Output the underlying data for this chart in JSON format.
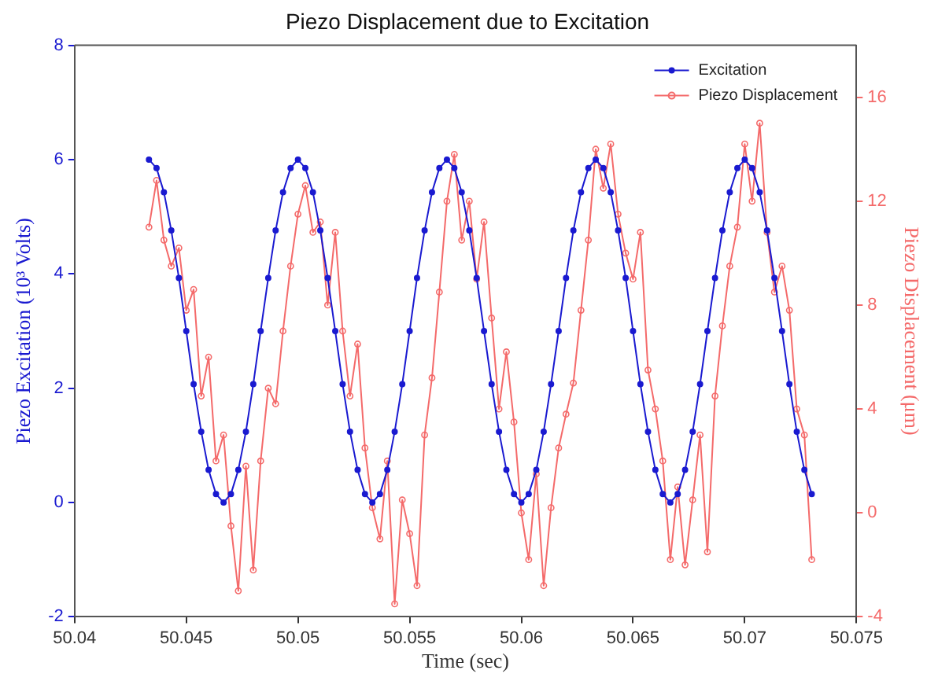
{
  "chart_data": {
    "type": "line",
    "title": "Piezo Displacement due to Excitation",
    "xlabel": "Time (sec)",
    "ylabel": "Piezo Excitation (10³ Volts)",
    "y2label": "Piezo Displacement (μm)",
    "xlim": [
      50.04,
      50.075
    ],
    "xticks": [
      50.04,
      50.045,
      50.05,
      50.055,
      50.06,
      50.065,
      50.07,
      50.075
    ],
    "ylim": [
      -2,
      8
    ],
    "yticks": [
      -2,
      0,
      2,
      4,
      6,
      8
    ],
    "y2lim": [
      -4,
      18
    ],
    "y2ticks": [
      -4,
      0,
      4,
      8,
      12,
      16
    ],
    "grid": false,
    "legend": "top right",
    "marker": "circle",
    "line_style": "solid",
    "x": [
      50.04333,
      50.04367,
      50.044,
      50.04433,
      50.04467,
      50.045,
      50.04533,
      50.04567,
      50.046,
      50.04633,
      50.04667,
      50.047,
      50.04733,
      50.04767,
      50.048,
      50.04833,
      50.04867,
      50.049,
      50.04933,
      50.04967,
      50.05,
      50.05033,
      50.05067,
      50.051,
      50.05133,
      50.05167,
      50.052,
      50.05233,
      50.05267,
      50.053,
      50.05333,
      50.05367,
      50.054,
      50.05433,
      50.05467,
      50.055,
      50.05533,
      50.05567,
      50.056,
      50.05633,
      50.05667,
      50.057,
      50.05733,
      50.05767,
      50.058,
      50.05833,
      50.05867,
      50.059,
      50.05933,
      50.05967,
      50.06,
      50.06033,
      50.06067,
      50.061,
      50.06133,
      50.06167,
      50.062,
      50.06233,
      50.06267,
      50.063,
      50.06333,
      50.06367,
      50.064,
      50.06433,
      50.06467,
      50.065,
      50.06533,
      50.06567,
      50.066,
      50.06633,
      50.06667,
      50.067,
      50.06733,
      50.06767,
      50.068,
      50.06833,
      50.06867,
      50.069,
      50.06933,
      50.06967,
      50.07,
      50.07033,
      50.07067,
      50.071,
      50.07133,
      50.07167,
      50.072,
      50.07233,
      50.07267,
      50.073
    ],
    "series": [
      {
        "name": "Excitation",
        "color": "#1a1ad0",
        "values": [
          6,
          5.85,
          5.43,
          4.76,
          3.93,
          3,
          2.07,
          1.24,
          0.57,
          0.15,
          0,
          0.15,
          0.57,
          1.24,
          2.07,
          3,
          3.93,
          4.76,
          5.43,
          5.85,
          6,
          5.85,
          5.43,
          4.76,
          3.93,
          3,
          2.07,
          1.24,
          0.57,
          0.15,
          0,
          0.15,
          0.57,
          1.24,
          2.07,
          3,
          3.93,
          4.76,
          5.43,
          5.85,
          6,
          5.85,
          5.43,
          4.76,
          3.93,
          3,
          2.07,
          1.24,
          0.57,
          0.15,
          0,
          0.15,
          0.57,
          1.24,
          2.07,
          3,
          3.93,
          4.76,
          5.43,
          5.85,
          6,
          5.85,
          5.43,
          4.76,
          3.93,
          3,
          2.07,
          1.24,
          0.57,
          0.15,
          0,
          0.15,
          0.57,
          1.24,
          2.07,
          3,
          3.93,
          4.76,
          5.43,
          5.85,
          6,
          5.85,
          5.43,
          4.76,
          3.93,
          3,
          2.07,
          1.24,
          0.57,
          0.15
        ]
      },
      {
        "name": "Piezo Displacement",
        "color": "#f46a6a",
        "axis": "y2",
        "values": [
          11.0,
          12.8,
          10.5,
          9.5,
          10.2,
          7.8,
          8.6,
          4.5,
          6.0,
          2.0,
          3.0,
          -0.5,
          -3.0,
          1.8,
          -2.2,
          2.0,
          4.8,
          4.2,
          7.0,
          9.5,
          11.5,
          12.6,
          10.8,
          11.2,
          8.0,
          10.8,
          7.0,
          4.5,
          6.5,
          2.5,
          0.2,
          -1.0,
          2.0,
          -3.5,
          0.5,
          -0.8,
          -2.8,
          3.0,
          5.2,
          8.5,
          12.0,
          13.8,
          10.5,
          12.0,
          9.0,
          11.2,
          7.5,
          4.0,
          6.2,
          3.5,
          0.0,
          -1.8,
          1.5,
          -2.8,
          0.2,
          2.5,
          3.8,
          5.0,
          7.8,
          10.5,
          14.0,
          12.5,
          14.2,
          11.5,
          10.0,
          9.0,
          10.8,
          5.5,
          4.0,
          2.0,
          -1.8,
          1.0,
          -2.0,
          0.5,
          3.0,
          -1.5,
          4.5,
          7.2,
          9.5,
          11.0,
          14.2,
          12.0,
          15.0,
          10.8,
          8.5,
          9.5,
          7.8,
          4.0,
          3.0,
          -1.8
        ]
      }
    ]
  }
}
